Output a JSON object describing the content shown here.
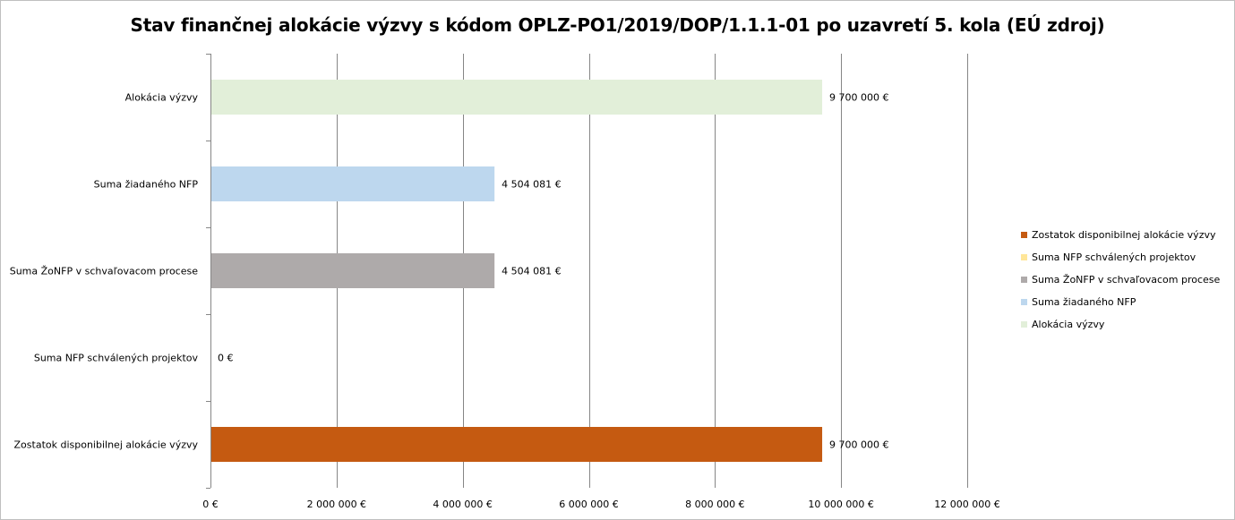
{
  "chart_data": {
    "type": "bar",
    "orientation": "horizontal",
    "title": "Stav finančnej alokácie výzvy s kódom OPLZ-PO1/2019/DOP/1.1.1-01 po uzavretí 5. kola (EÚ zdroj)",
    "categories": [
      "Alokácia výzvy",
      "Suma žiadaného NFP",
      "Suma ŽoNFP v schvaľovacom procese",
      "Suma NFP schválených projektov",
      "Zostatok disponibilnej alokácie výzvy"
    ],
    "values": [
      9700000,
      4504081,
      4504081,
      0,
      9700000
    ],
    "value_labels": [
      "9 700 000 €",
      "4 504 081 €",
      "4 504 081 €",
      "0 €",
      "9 700 000 €"
    ],
    "colors": [
      "#e2efd9",
      "#bdd7ee",
      "#aeaaaa",
      "#ffe699",
      "#c55a11"
    ],
    "xlim": [
      0,
      12000000
    ],
    "xticks": [
      0,
      2000000,
      4000000,
      6000000,
      8000000,
      10000000,
      12000000
    ],
    "xtick_labels": [
      "0 €",
      "2 000 000 €",
      "4 000 000 €",
      "6 000 000 €",
      "8 000 000 €",
      "10 000 000 €",
      "12 000 000 €"
    ],
    "grid": true,
    "legend_position": "right",
    "legend": [
      {
        "label": "Zostatok disponibilnej alokácie výzvy",
        "color": "#c55a11"
      },
      {
        "label": "Suma NFP schválených projektov",
        "color": "#ffe699"
      },
      {
        "label": "Suma ŽoNFP v schvaľovacom procese",
        "color": "#aeaaaa"
      },
      {
        "label": "Suma žiadaného NFP",
        "color": "#bdd7ee"
      },
      {
        "label": "Alokácia výzvy",
        "color": "#e2efd9"
      }
    ]
  }
}
